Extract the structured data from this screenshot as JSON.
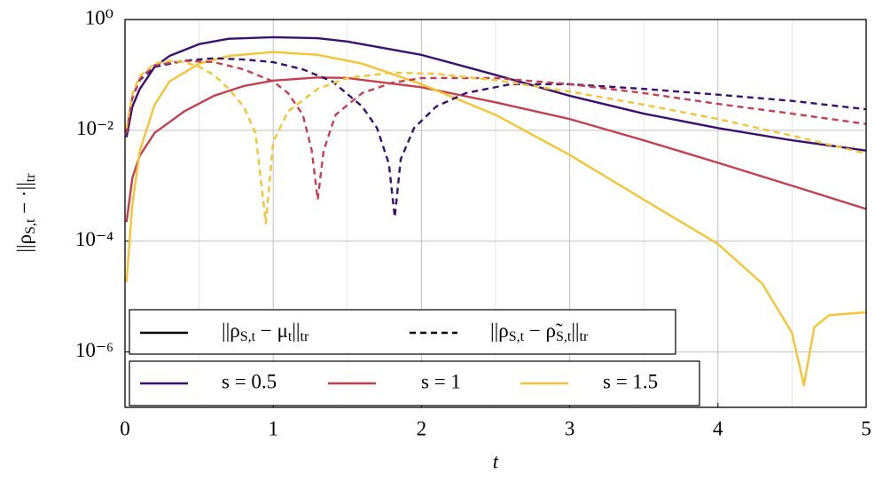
{
  "chart_data": {
    "type": "line",
    "xlabel": "t",
    "ylabel": [
      {
        "text": "||ρ"
      },
      {
        "text": "S,t",
        "sub": true
      },
      {
        "text": " − ·||"
      },
      {
        "text": "tr",
        "sub": true
      }
    ],
    "xlim": [
      0,
      5
    ],
    "xticks": [
      0,
      1,
      2,
      3,
      4,
      5
    ],
    "xminorticks": [
      0.5,
      1.5,
      2.5,
      3.5,
      4.5
    ],
    "ylim": [
      1e-07,
      1
    ],
    "yscale": "log",
    "yticks": [
      {
        "value": 1,
        "label": "10⁰"
      },
      {
        "value": 0.01,
        "label": "10⁻²"
      },
      {
        "value": 0.0001,
        "label": "10⁻⁴"
      },
      {
        "value": 1e-06,
        "label": "10⁻⁶"
      }
    ],
    "grid": true,
    "style_legend": [
      {
        "label": [
          {
            "text": "||ρ"
          },
          {
            "text": "S,t",
            "sub": true
          },
          {
            "text": " − μ"
          },
          {
            "text": "t",
            "sub": true
          },
          {
            "text": "||"
          },
          {
            "text": "tr",
            "sub": true
          }
        ],
        "dash": false
      },
      {
        "label": [
          {
            "text": "||ρ"
          },
          {
            "text": "S,t",
            "sub": true
          },
          {
            "text": " − ρ̃"
          },
          {
            "text": "S,t",
            "sub": true
          },
          {
            "text": "||"
          },
          {
            "text": "tr",
            "sub": true
          }
        ],
        "dash": true
      }
    ],
    "color_legend": [
      {
        "label": "s = 0.5",
        "color": "#3b0f6f"
      },
      {
        "label": "s = 1",
        "color": "#c4404e"
      },
      {
        "label": "s = 1.5",
        "color": "#f6c431"
      }
    ],
    "series": [
      {
        "color": "#3b0f6f",
        "dash": false,
        "x": [
          0.01,
          0.05,
          0.1,
          0.2,
          0.3,
          0.5,
          0.7,
          1,
          1.3,
          1.5,
          2,
          2.5,
          3,
          3.5,
          4,
          4.5,
          5
        ],
        "values": [
          0.0075,
          0.027,
          0.056,
          0.14,
          0.22,
          0.36,
          0.45,
          0.48,
          0.46,
          0.4,
          0.23,
          0.1,
          0.042,
          0.02,
          0.011,
          0.0066,
          0.0043
        ]
      },
      {
        "color": "#c4404e",
        "dash": false,
        "x": [
          0.01,
          0.05,
          0.1,
          0.2,
          0.4,
          0.6,
          0.8,
          1,
          1.3,
          1.5,
          2,
          2.5,
          3,
          3.5,
          4,
          4.5,
          5
        ],
        "values": [
          0.00022,
          0.0014,
          0.0035,
          0.009,
          0.022,
          0.042,
          0.063,
          0.079,
          0.09,
          0.088,
          0.06,
          0.032,
          0.016,
          0.0066,
          0.0026,
          0.001,
          0.00038
        ]
      },
      {
        "color": "#f6c431",
        "dash": false,
        "x": [
          0.01,
          0.05,
          0.1,
          0.2,
          0.3,
          0.5,
          0.7,
          1,
          1.3,
          1.6,
          2,
          2.5,
          3,
          3.5,
          4,
          4.3,
          4.5,
          4.58,
          4.65,
          4.75,
          5
        ],
        "values": [
          1.8e-05,
          0.00047,
          0.0043,
          0.029,
          0.076,
          0.16,
          0.22,
          0.26,
          0.23,
          0.16,
          0.068,
          0.019,
          0.0036,
          0.00056,
          8.9e-05,
          1.7e-05,
          2.2e-06,
          2.5e-07,
          2.8e-06,
          4.6e-06,
          5.2e-06
        ]
      },
      {
        "color": "#3b0f6f",
        "dash": true,
        "x": [
          0.01,
          0.05,
          0.1,
          0.2,
          0.4,
          0.6,
          0.8,
          1,
          1.2,
          1.4,
          1.6,
          1.7,
          1.78,
          1.82,
          1.86,
          1.95,
          2.1,
          2.3,
          2.6,
          3,
          3.5,
          4,
          4.5,
          5
        ],
        "values": [
          0.009,
          0.039,
          0.081,
          0.14,
          0.18,
          0.2,
          0.19,
          0.17,
          0.126,
          0.076,
          0.027,
          0.011,
          0.0025,
          0.00027,
          0.003,
          0.011,
          0.027,
          0.047,
          0.068,
          0.068,
          0.056,
          0.044,
          0.034,
          0.024
        ]
      },
      {
        "color": "#c4404e",
        "dash": true,
        "x": [
          0.01,
          0.05,
          0.1,
          0.2,
          0.4,
          0.6,
          0.8,
          1,
          1.1,
          1.2,
          1.26,
          1.3,
          1.34,
          1.42,
          1.6,
          1.8,
          2,
          2.5,
          3,
          3.5,
          4,
          4.5,
          5
        ],
        "values": [
          0.009,
          0.04,
          0.085,
          0.15,
          0.18,
          0.17,
          0.126,
          0.076,
          0.047,
          0.019,
          0.0043,
          0.00056,
          0.0043,
          0.019,
          0.047,
          0.072,
          0.088,
          0.088,
          0.068,
          0.047,
          0.03,
          0.02,
          0.013
        ]
      },
      {
        "color": "#f6c431",
        "dash": true,
        "x": [
          0.01,
          0.05,
          0.1,
          0.2,
          0.3,
          0.4,
          0.5,
          0.6,
          0.7,
          0.8,
          0.88,
          0.95,
          1,
          1.1,
          1.3,
          1.5,
          1.8,
          2.1,
          2.5,
          3,
          3.5,
          4,
          4.5,
          5
        ],
        "values": [
          0.011,
          0.045,
          0.095,
          0.16,
          0.18,
          0.17,
          0.14,
          0.1,
          0.056,
          0.027,
          0.009,
          0.00021,
          0.0062,
          0.022,
          0.056,
          0.088,
          0.11,
          0.105,
          0.08,
          0.05,
          0.029,
          0.016,
          0.008,
          0.0038
        ]
      }
    ]
  }
}
